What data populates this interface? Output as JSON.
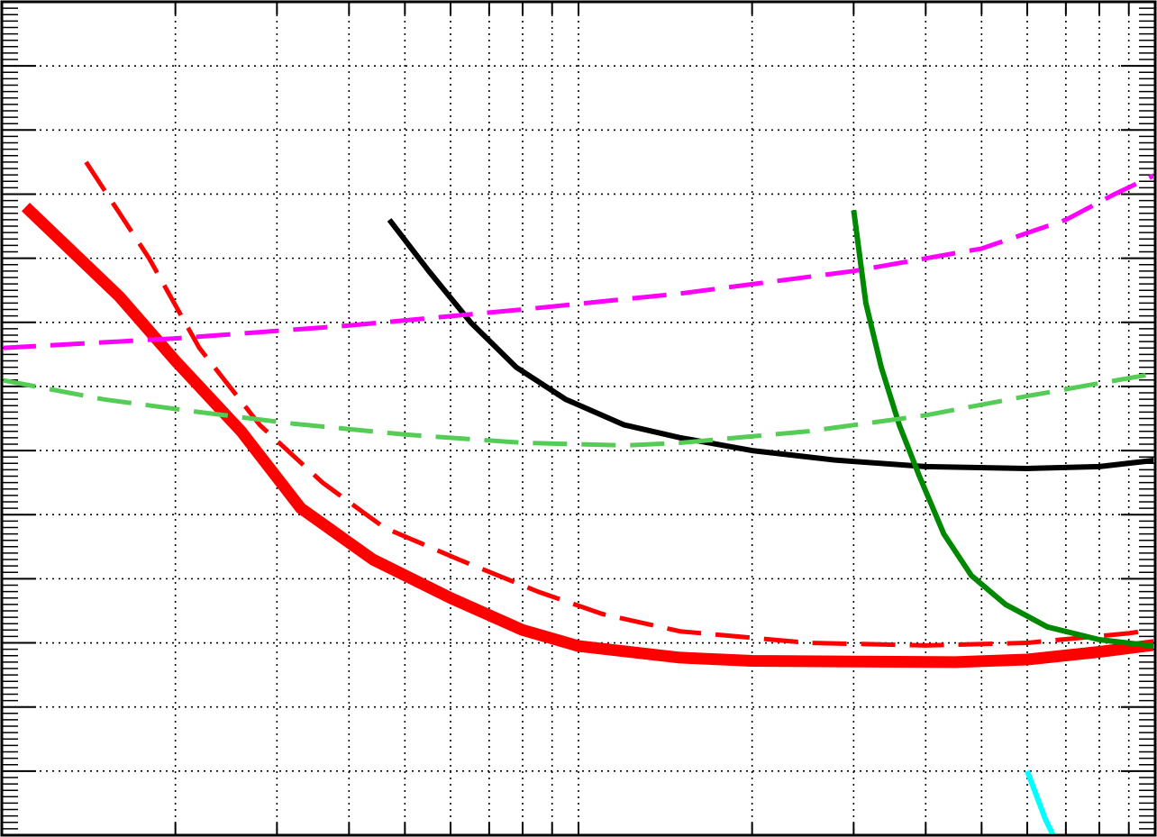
{
  "chart_data": {
    "type": "line",
    "title": "",
    "xlabel": "",
    "ylabel": "",
    "x_scale": "log",
    "xlim": [
      1,
      100
    ],
    "ylim": [
      0,
      13
    ],
    "y_major_step": 1,
    "grid": true,
    "series": [
      {
        "color": "#ff0000",
        "style": "solid-thick",
        "x": [
          1.1,
          1.6,
          2.0,
          2.6,
          3.3,
          4.4,
          6.0,
          8.0,
          10.0,
          15.0,
          20.0,
          30.0,
          45.0,
          60.0,
          80.0,
          100.0
        ],
        "y": [
          9.8,
          8.4,
          7.4,
          6.3,
          5.1,
          4.3,
          3.7,
          3.2,
          2.95,
          2.77,
          2.72,
          2.71,
          2.7,
          2.74,
          2.86,
          2.97
        ]
      },
      {
        "color": "#ff0000",
        "style": "dashed",
        "x": [
          1.4,
          1.8,
          2.2,
          2.8,
          3.6,
          4.6,
          6.2,
          8.5,
          11.0,
          15.0,
          25.0,
          40.0,
          60.0,
          90.0,
          98.0
        ],
        "y": [
          10.5,
          9.0,
          7.6,
          6.4,
          5.5,
          4.8,
          4.3,
          3.8,
          3.45,
          3.18,
          3.0,
          2.96,
          3.0,
          3.15,
          3.2
        ]
      },
      {
        "color": "#000000",
        "style": "solid",
        "x": [
          4.7,
          5.5,
          6.5,
          7.8,
          9.5,
          12.0,
          15.0,
          20.0,
          28.0,
          40.0,
          60.0,
          80.0,
          100.0
        ],
        "y": [
          9.6,
          8.8,
          8.0,
          7.3,
          6.8,
          6.4,
          6.2,
          6.0,
          5.85,
          5.75,
          5.72,
          5.75,
          5.85
        ]
      },
      {
        "color": "#008800",
        "style": "solid",
        "x": [
          30.0,
          31.5,
          33.5,
          36.0,
          39.0,
          43.0,
          48.0,
          55.0,
          65.0,
          80.0,
          100.0
        ],
        "y": [
          9.75,
          8.3,
          7.3,
          6.4,
          5.6,
          4.7,
          4.05,
          3.6,
          3.25,
          3.05,
          2.95
        ]
      },
      {
        "color": "#00ffff",
        "style": "solid",
        "x": [
          60.0,
          64.5,
          69.0
        ],
        "y": [
          1.0,
          0.25,
          -0.3
        ]
      },
      {
        "color": "#ff00ff",
        "style": "dashed",
        "x": [
          1.0,
          2.0,
          4.0,
          8.0,
          15.0,
          30.0,
          50.0,
          70.0,
          85.0,
          100.0
        ],
        "y": [
          7.6,
          7.75,
          7.95,
          8.2,
          8.45,
          8.8,
          9.15,
          9.6,
          10.0,
          10.3
        ]
      },
      {
        "color": "#55cc55",
        "style": "dashed",
        "x": [
          1.0,
          1.5,
          2.2,
          3.2,
          5.0,
          8.0,
          12.0,
          15.0,
          25.0,
          40.0,
          60.0,
          80.0,
          100.0
        ],
        "y": [
          7.1,
          6.8,
          6.6,
          6.42,
          6.25,
          6.12,
          6.08,
          6.12,
          6.3,
          6.55,
          6.85,
          7.05,
          7.2
        ]
      }
    ]
  }
}
